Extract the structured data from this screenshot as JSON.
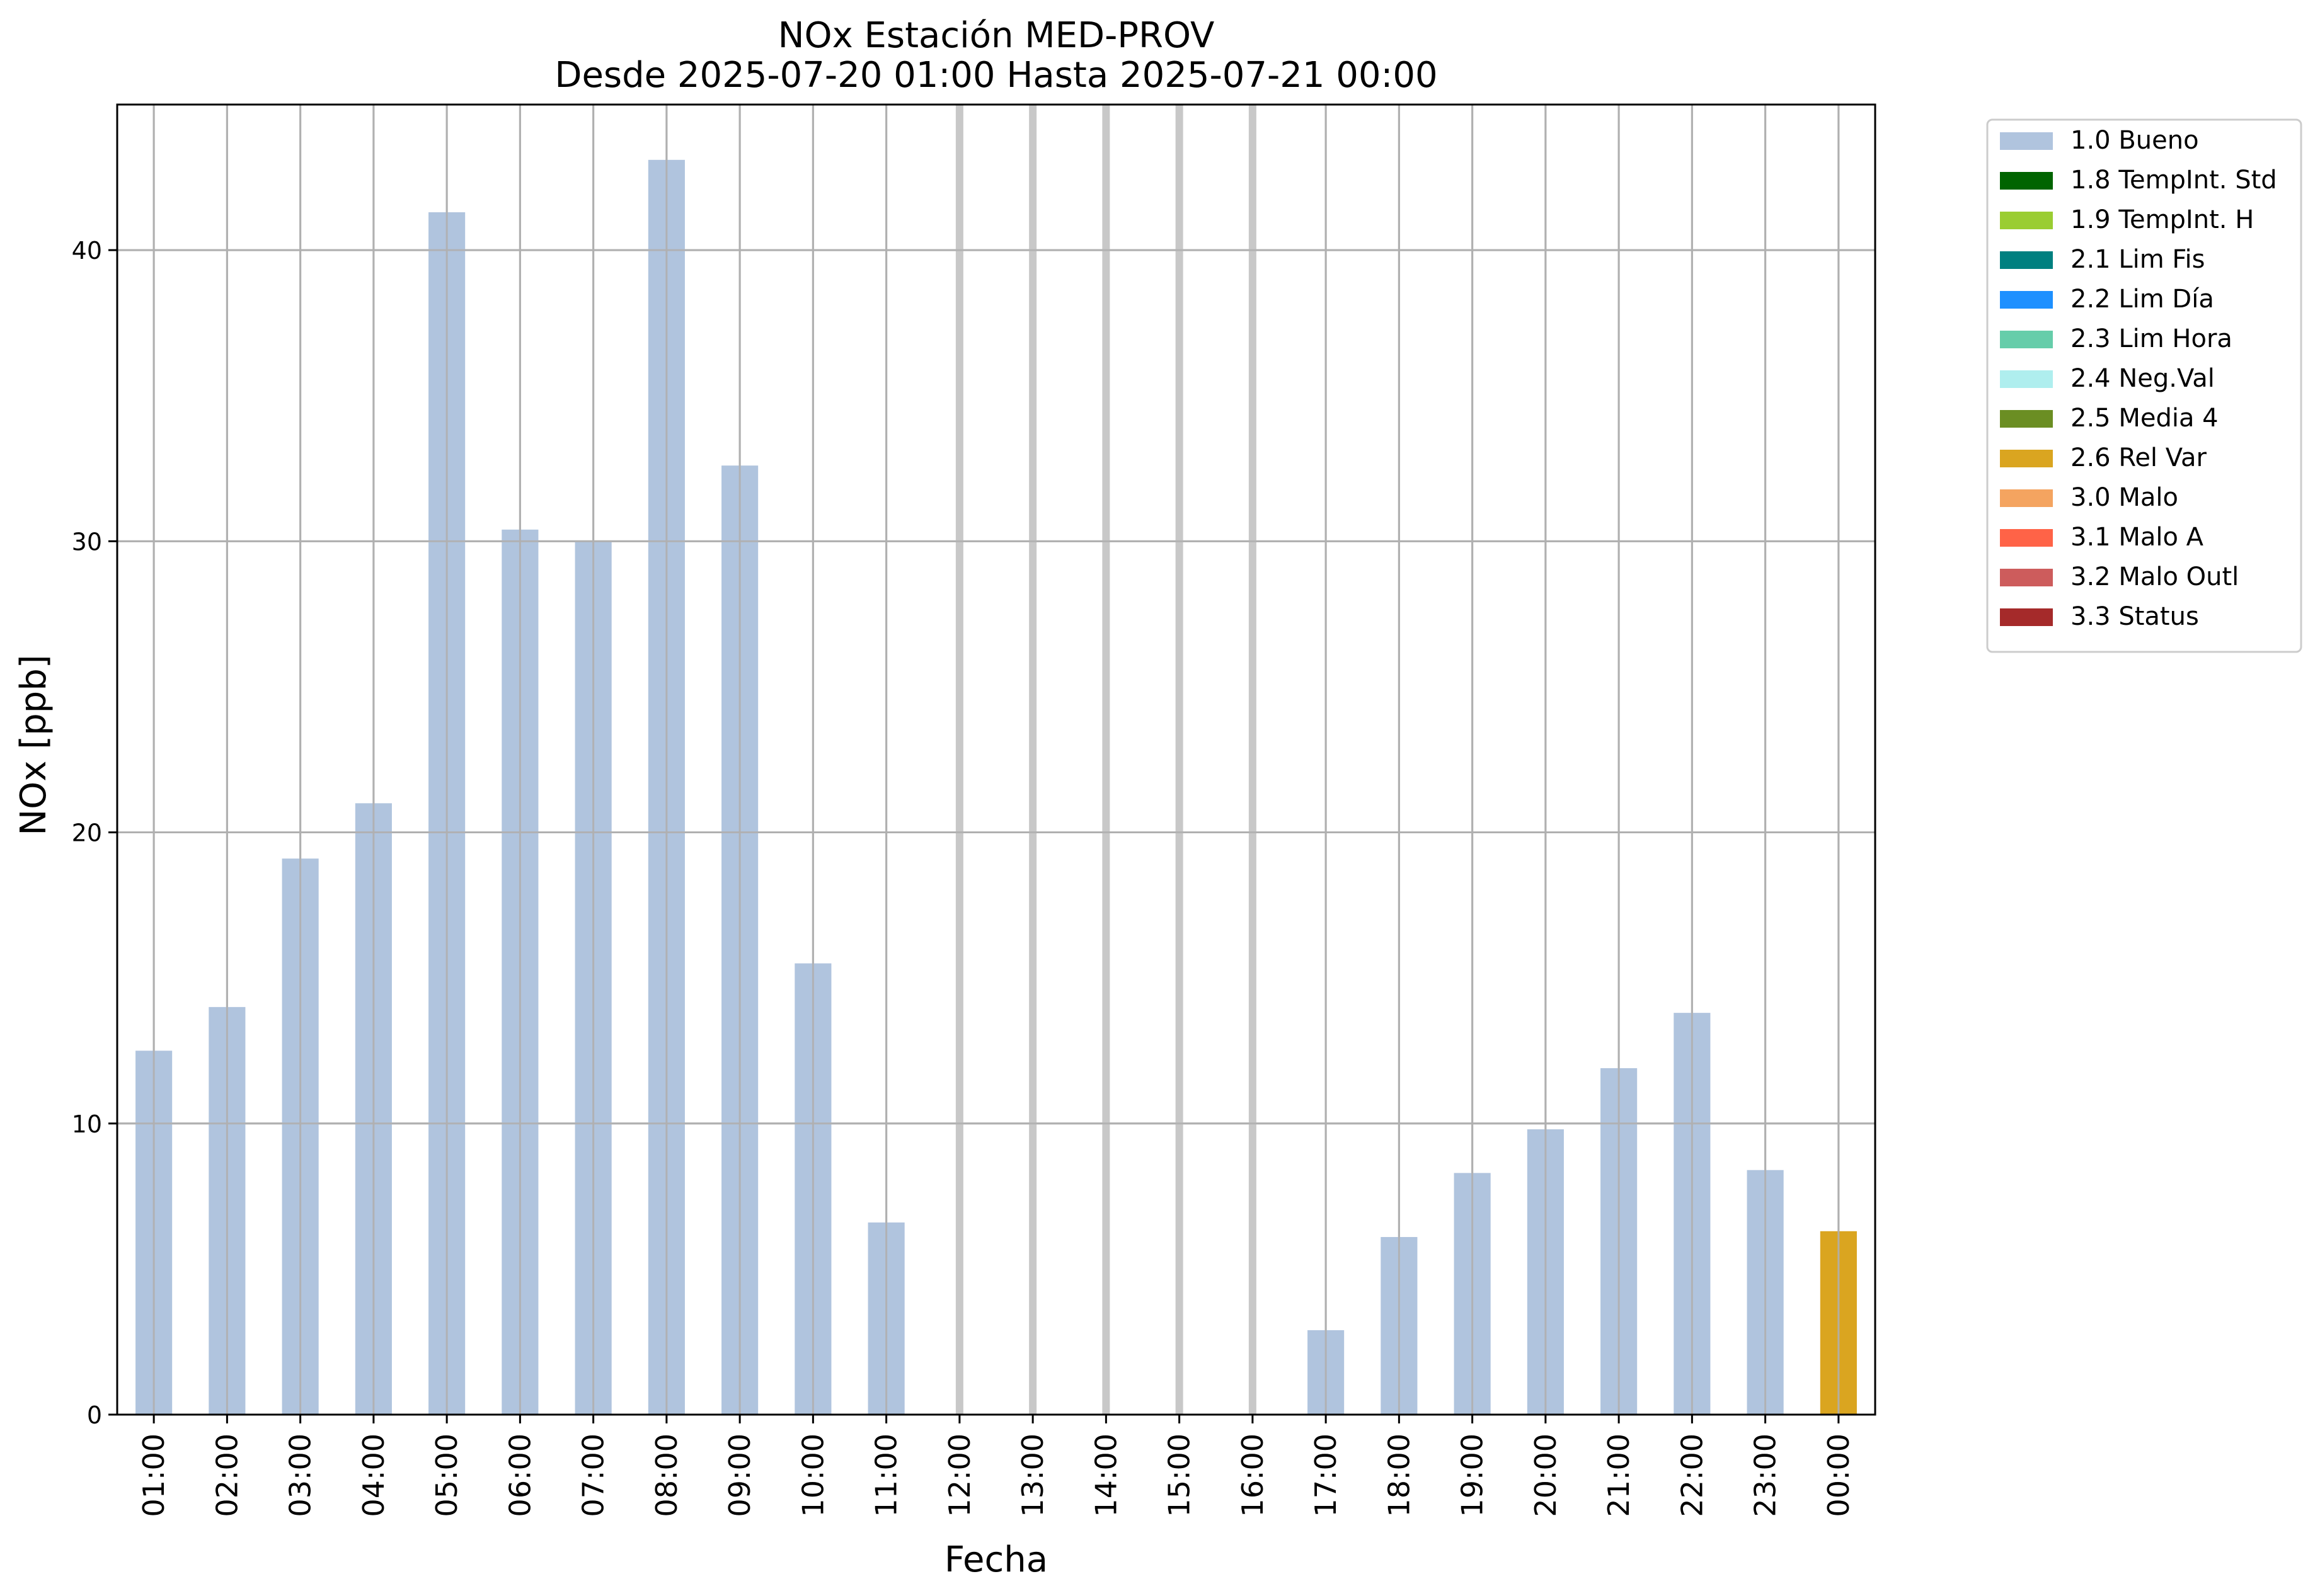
{
  "chart_data": {
    "type": "bar",
    "title": "NOx Estación MED-PROV",
    "subtitle": "Desde 2025-07-20 01:00 Hasta 2025-07-21 00:00",
    "xlabel": "Fecha",
    "ylabel": "NOx [ppb]",
    "ylim": [
      0,
      45
    ],
    "yticks": [
      "0",
      "10",
      "20",
      "30",
      "40"
    ],
    "grid": true,
    "legend_placement": "outside-top-right",
    "categories": [
      "01:00",
      "02:00",
      "03:00",
      "04:00",
      "05:00",
      "06:00",
      "07:00",
      "08:00",
      "09:00",
      "10:00",
      "11:00",
      "12:00",
      "13:00",
      "14:00",
      "15:00",
      "16:00",
      "17:00",
      "18:00",
      "19:00",
      "20:00",
      "21:00",
      "22:00",
      "23:00",
      "00:00"
    ],
    "values": [
      12.5,
      14.0,
      19.1,
      21.0,
      41.3,
      30.4,
      30.0,
      43.1,
      32.6,
      15.5,
      6.6,
      null,
      null,
      null,
      null,
      null,
      2.9,
      6.1,
      8.3,
      9.8,
      11.9,
      13.8,
      8.4,
      6.3
    ],
    "flags": [
      "1.0 Bueno",
      "1.0 Bueno",
      "1.0 Bueno",
      "1.0 Bueno",
      "1.0 Bueno",
      "1.0 Bueno",
      "1.0 Bueno",
      "1.0 Bueno",
      "1.0 Bueno",
      "1.0 Bueno",
      "1.0 Bueno",
      null,
      null,
      null,
      null,
      null,
      "1.0 Bueno",
      "1.0 Bueno",
      "1.0 Bueno",
      "1.0 Bueno",
      "1.0 Bueno",
      "1.0 Bueno",
      "1.0 Bueno",
      "2.6 Rel Var"
    ],
    "legend": [
      {
        "label": "1.0 Bueno",
        "color": "#b0c4de"
      },
      {
        "label": "1.8 TempInt. Std",
        "color": "#006400"
      },
      {
        "label": "1.9 TempInt. H",
        "color": "#9acd32"
      },
      {
        "label": "2.1 Lim Fis",
        "color": "#008080"
      },
      {
        "label": "2.2 Lim Día",
        "color": "#1e90ff"
      },
      {
        "label": "2.3 Lim Hora",
        "color": "#66cdaa"
      },
      {
        "label": "2.4 Neg.Val",
        "color": "#afeeee"
      },
      {
        "label": "2.5 Media 4",
        "color": "#6b8e23"
      },
      {
        "label": "2.6 Rel Var",
        "color": "#daa520"
      },
      {
        "label": "3.0 Malo",
        "color": "#f4a460"
      },
      {
        "label": "3.1 Malo A",
        "color": "#ff6347"
      },
      {
        "label": "3.2 Malo Outl",
        "color": "#cd5c5c"
      },
      {
        "label": "3.3 Status",
        "color": "#a52a2a"
      }
    ]
  }
}
